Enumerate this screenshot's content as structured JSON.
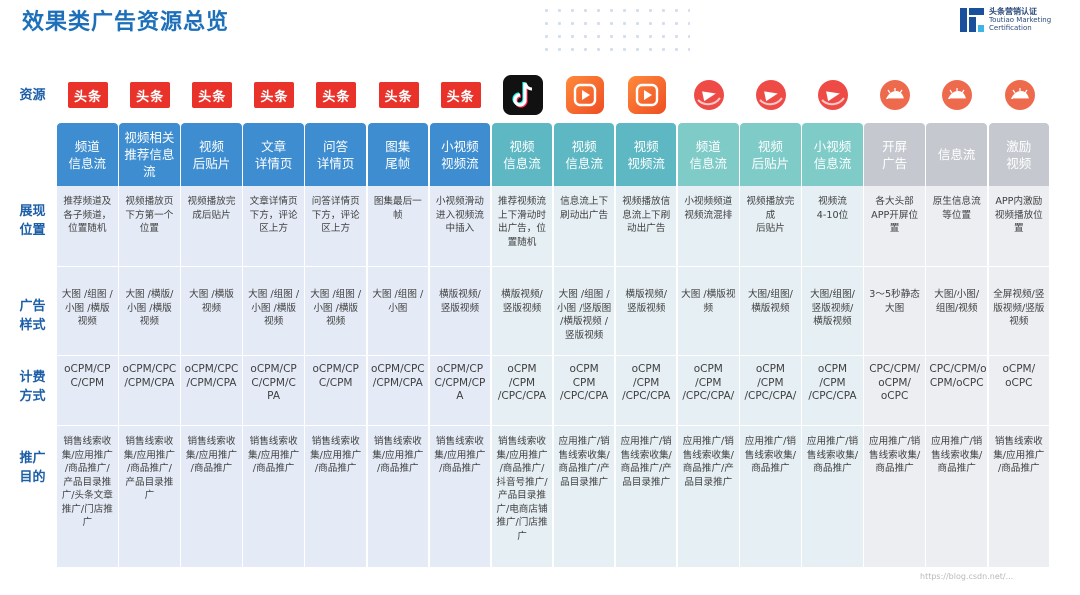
{
  "page_title": "效果类广告资源总览",
  "brand": {
    "line1": "头条营销认证",
    "line2": "Toutiao Marketing",
    "line3": "Certification"
  },
  "row_labels": {
    "resource": "资源",
    "position": "展现\n位置",
    "style": "广告\n样式",
    "billing": "计费\n方式",
    "goal": "推广\n目的"
  },
  "logos": [
    {
      "icon": "toutiao-logo-icon",
      "text": "头条"
    },
    {
      "icon": "toutiao-logo-icon",
      "text": "头条"
    },
    {
      "icon": "toutiao-logo-icon",
      "text": "头条"
    },
    {
      "icon": "toutiao-logo-icon",
      "text": "头条"
    },
    {
      "icon": "toutiao-logo-icon",
      "text": "头条"
    },
    {
      "icon": "toutiao-logo-icon",
      "text": "头条"
    },
    {
      "icon": "toutiao-logo-icon",
      "text": "头条"
    },
    {
      "icon": "douyin-logo-icon",
      "text": ""
    },
    {
      "icon": "xigua-logo-icon",
      "text": ""
    },
    {
      "icon": "xigua-logo-icon",
      "text": ""
    },
    {
      "icon": "huoshan-logo-icon",
      "text": ""
    },
    {
      "icon": "huoshan-logo-icon",
      "text": ""
    },
    {
      "icon": "huoshan-logo-icon",
      "text": ""
    },
    {
      "icon": "pangolin-logo-icon",
      "text": ""
    },
    {
      "icon": "pangolin-logo-icon",
      "text": ""
    },
    {
      "icon": "pangolin-logo-icon",
      "text": ""
    }
  ],
  "colors": {
    "blue_head": "#3d8dd0",
    "blue_head_dark": "#2f7cc2",
    "teal_head": "#5db8c4",
    "teal_head_2": "#7ecbc8",
    "gray_head": "#c5c9cf",
    "cell_bg": "#e4ebf6",
    "title": "#1c6fb8"
  },
  "columns": [
    {
      "head": "频道\n信息流",
      "position": "推荐频道及\n各子频道，\n位置随机",
      "style": "大图 /组图 /\n小图 /横版\n视频",
      "billing": "oCPM/CP\nC/CPM",
      "goal": "销售线索收\n集/应用推广\n/商品推广/\n产品目录推\n广/头条文章\n推广/门店推\n广"
    },
    {
      "head": "视频相关\n推荐信息\n流",
      "position": "视频播放页\n下方第一个\n位置",
      "style": "大图 /横版/\n小图 /横版\n视频",
      "billing": "oCPM/CPC\n/CPM/CPA",
      "goal": "销售线索收\n集/应用推广\n/商品推广/\n产品目录推\n广"
    },
    {
      "head": "视频\n后贴片",
      "position": "视频播放完\n成后贴片",
      "style": "大图 /横版\n视频",
      "billing": "oCPM/CPC\n/CPM/CPA",
      "goal": "销售线索收\n集/应用推广\n/商品推广"
    },
    {
      "head": "文章\n详情页",
      "position": "文章详情页\n下方，评论\n区上方",
      "style": "大图 /组图 /\n小图 /横版\n视频",
      "billing": "oCPM/CP\nC/CPM/C\nPA",
      "goal": "销售线索收\n集/应用推广\n/商品推广"
    },
    {
      "head": "问答\n详情页",
      "position": "问答详情页\n下方，评论\n区上方",
      "style": "大图 /组图 /\n小图 /横版\n视频",
      "billing": "oCPM/CP\nC/CPM",
      "goal": "销售线索收\n集/应用推广\n/商品推广"
    },
    {
      "head": "图集\n尾帧",
      "position": "图集最后一\n帧",
      "style": "大图 /组图 /\n小图",
      "billing": "oCPM/CPC\n/CPM/CPA",
      "goal": "销售线索收\n集/应用推广\n/商品推广"
    },
    {
      "head": "小视频\n视频流",
      "position": "小视频滑动\n进入视频流\n中插入",
      "style": "横版视频/\n竖版视频",
      "billing": "oCPM/CP\nC/CPM/CP\nA",
      "goal": "销售线索收\n集/应用推广\n/商品推广"
    },
    {
      "head": "视频\n信息流",
      "position": "推荐视频流\n上下滑动时\n出广告，位\n置随机",
      "style": "横版视频/\n竖版视频",
      "billing": "oCPM\n/CPM\n/CPC/CPA",
      "goal": "销售线索收\n集/应用推广\n/商品推广/\n抖音号推广/\n产品目录推\n广/电商店铺\n推广/门店推\n广"
    },
    {
      "head": "视频\n信息流",
      "position": "信息流上下\n刷动出广告",
      "style": "大图 /组图 /\n小图 /竖版图\n/横版视频 /\n竖版视频",
      "billing": "oCPM CPM\n/CPC/CPA",
      "goal": "应用推广/销\n售线索收集/\n商品推广/产\n品目录推广"
    },
    {
      "head": "视频\n视频流",
      "position": "视频播放信\n息流上下刷\n动出广告",
      "style": "横版视频/\n竖版视频",
      "billing": "oCPM\n/CPM\n/CPC/CPA",
      "goal": "应用推广/销\n售线索收集/\n商品推广/产\n品目录推广"
    },
    {
      "head": "频道\n信息流",
      "position": "小视频频道\n视频流混排",
      "style": "大图 /横版视\n频",
      "billing": "oCPM\n/CPM\n/CPC/CPA/",
      "goal": "应用推广/销\n售线索收集/\n商品推广/产\n品目录推广"
    },
    {
      "head": "视频\n后贴片",
      "position": "视频播放完\n成\n后贴片",
      "style": "大图/组图/\n横版视频",
      "billing": "oCPM\n/CPM\n/CPC/CPA/",
      "goal": "应用推广/销\n售线索收集/\n商品推广"
    },
    {
      "head": "小视频\n信息流",
      "position": "视频流\n4-10位",
      "style": "大图/组图/\n竖版视频/\n横版视频",
      "billing": "oCPM\n/CPM\n/CPC/CPA",
      "goal": "应用推广/销\n售线索收集/\n商品推广"
    },
    {
      "head": "开屏\n广告",
      "position": "各大头部\nAPP开屏位\n置",
      "style": "3～5秒静态\n大图",
      "billing": "CPC/CPM/\noCPM/\noCPC",
      "goal": "应用推广/销\n售线索收集/\n商品推广"
    },
    {
      "head": "信息流",
      "position": "原生信息流\n等位置",
      "style": "大图/小图/\n组图/视频",
      "billing": "CPC/CPM/o\nCPM/oCPC",
      "goal": "应用推广/销\n售线索收集/\n商品推广"
    },
    {
      "head": "激励\n视频",
      "position": "APP内激励\n视频播放位\n置",
      "style": "全屏视频/竖\n版视频/竖版\n视频",
      "billing": "oCPM/\noCPC",
      "goal": "销售线索收\n集/应用推广\n/商品推广"
    }
  ],
  "watermark": "https://blog.csdn.net/..."
}
